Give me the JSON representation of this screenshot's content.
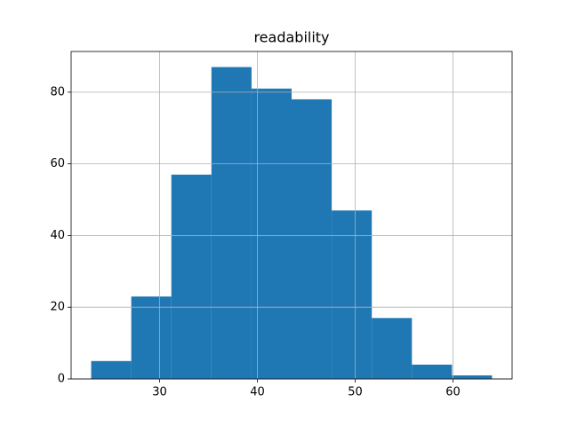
{
  "chart_data": {
    "type": "histogram",
    "title": "readability",
    "bins": [
      23,
      27.1,
      31.2,
      35.3,
      39.4,
      43.5,
      47.6,
      51.7,
      55.8,
      59.9,
      64
    ],
    "values": [
      5,
      23,
      57,
      87,
      81,
      78,
      47,
      17,
      4,
      1
    ],
    "color": "#1f77b4",
    "xlim": [
      20.95,
      66.05
    ],
    "xticks": [
      30,
      40,
      50,
      60
    ],
    "ylim": [
      0,
      91.35
    ],
    "yticks": [
      0,
      20,
      40,
      60,
      80
    ],
    "grid": true
  }
}
